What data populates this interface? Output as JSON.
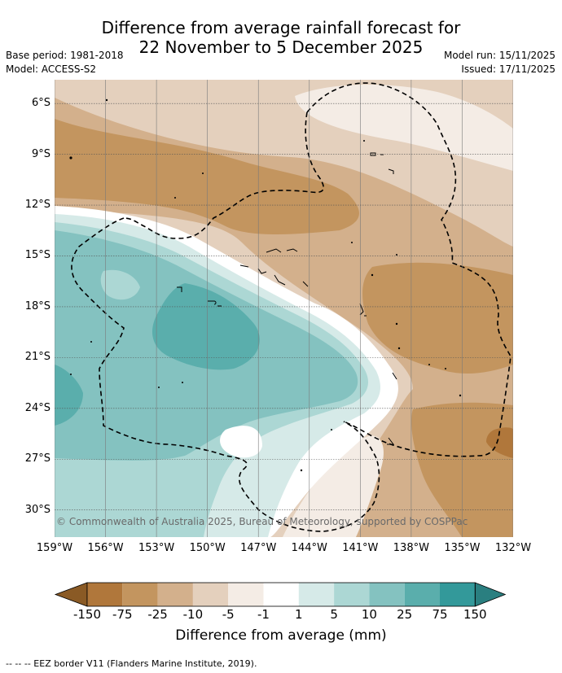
{
  "title": {
    "line1": "Difference from average rainfall forecast for",
    "line2": "22 November to 5 December 2025"
  },
  "meta": {
    "base_period": "Base period: 1981-2018",
    "model": "Model: ACCESS-S2",
    "model_run": "Model run: 15/11/2025",
    "issued": "Issued: 17/11/2025"
  },
  "map": {
    "lat_labels": [
      "6°S",
      "9°S",
      "12°S",
      "15°S",
      "18°S",
      "21°S",
      "24°S",
      "27°S",
      "30°S"
    ],
    "lon_labels": [
      "159°W",
      "156°W",
      "153°W",
      "150°W",
      "147°W",
      "144°W",
      "141°W",
      "138°W",
      "135°W",
      "132°W"
    ],
    "lon_range": [
      -159,
      -132
    ],
    "lat_range": [
      -31.6,
      -4.6
    ],
    "copyright": "© Commonwealth of Australia 2025, Bureau of Meteorology, supported by COSPPac"
  },
  "colorbar": {
    "labels": [
      "-150",
      "-75",
      "-25",
      "-10",
      "-5",
      "-1",
      "1",
      "5",
      "10",
      "25",
      "75",
      "150"
    ],
    "colors": [
      "#8a5a25",
      "#b0773b",
      "#c3955f",
      "#d3b08c",
      "#e4d0bd",
      "#f4ece5",
      "#ffffff",
      "#d6eae8",
      "#acd7d4",
      "#84c2c0",
      "#5aaeac",
      "#33999a",
      "#2a7f80"
    ],
    "title": "Difference from average (mm)"
  },
  "legend": {
    "eez": "-- -- -- EEZ border V11 (Flanders Marine Institute, 2019)."
  }
}
